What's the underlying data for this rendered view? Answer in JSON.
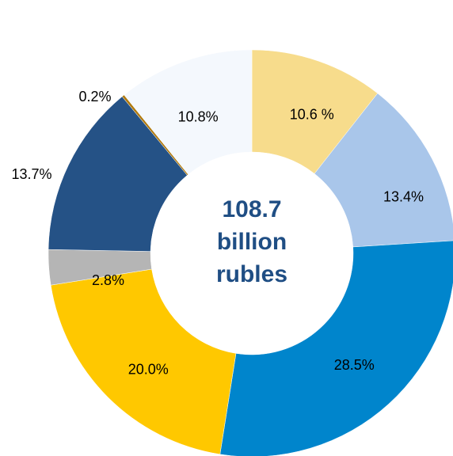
{
  "chart_data": {
    "type": "donut",
    "categories": [
      null,
      null,
      null,
      null,
      null,
      null,
      null,
      null
    ],
    "values": [
      10.6,
      13.4,
      28.5,
      20.0,
      2.8,
      13.7,
      0.2,
      10.8
    ],
    "value_labels": [
      "10.6 %",
      "13.4%",
      "28.5%",
      "20.0%",
      "2.8%",
      "13.7%",
      "0.2%",
      "10.8%"
    ],
    "colors": [
      "#f7dc8c",
      "#a9c6ea",
      "#0085cc",
      "#ffc800",
      "#b5b5b5",
      "#255286",
      "#b07a10",
      "#f4f8fd"
    ],
    "center_lines": [
      "108.7",
      "billion",
      "rubles"
    ]
  }
}
